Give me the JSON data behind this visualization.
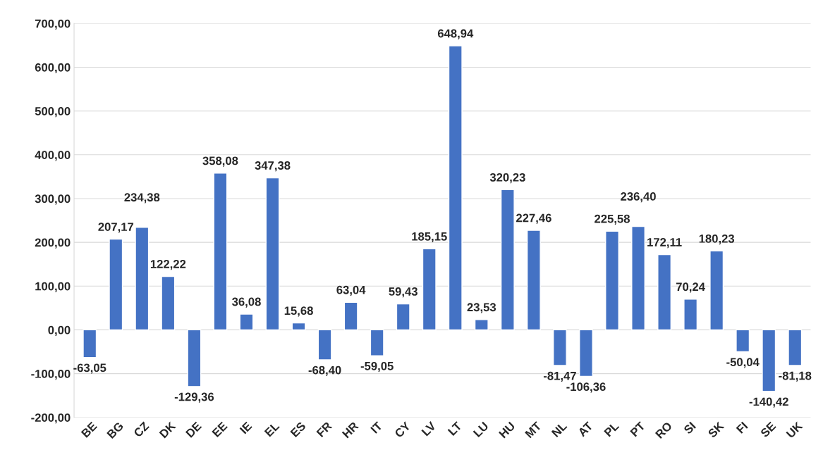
{
  "chart_data": {
    "type": "bar",
    "categories": [
      "BE",
      "BG",
      "CZ",
      "DK",
      "DE",
      "EE",
      "IE",
      "EL",
      "ES",
      "FR",
      "HR",
      "IT",
      "CY",
      "LV",
      "LT",
      "LU",
      "HU",
      "MT",
      "NL",
      "AT",
      "PL",
      "PT",
      "RO",
      "SI",
      "SK",
      "FI",
      "SE",
      "UK"
    ],
    "values": [
      -63.05,
      207.17,
      234.38,
      122.22,
      -129.36,
      358.08,
      36.08,
      347.38,
      15.68,
      -68.4,
      63.04,
      -59.05,
      59.43,
      185.15,
      648.94,
      23.53,
      320.23,
      227.46,
      -81.47,
      -106.36,
      225.58,
      236.4,
      172.11,
      70.24,
      180.23,
      -50.04,
      -140.42,
      -81.18
    ],
    "value_labels": [
      "-63,05",
      "207,17",
      "234,38",
      "122,22",
      "-129,36",
      "358,08",
      "36,08",
      "347,38",
      "15,68",
      "-68,40",
      "63,04",
      "-59,05",
      "59,43",
      "185,15",
      "648,94",
      "23,53",
      "320,23",
      "227,46",
      "-81,47",
      "-106,36",
      "225,58",
      "236,40",
      "172,11",
      "70,24",
      "180,23",
      "-50,04",
      "-140,42",
      "-81,18"
    ],
    "color": "#4472c4",
    "ylim": [
      -200,
      700
    ],
    "yticks": [
      {
        "value": -200,
        "label": "-200,00"
      },
      {
        "value": -100,
        "label": "-100,00"
      },
      {
        "value": 0,
        "label": "0,00"
      },
      {
        "value": 100,
        "label": "100,00"
      },
      {
        "value": 200,
        "label": "200,00"
      },
      {
        "value": 300,
        "label": "300,00"
      },
      {
        "value": 400,
        "label": "400,00"
      },
      {
        "value": 500,
        "label": "500,00"
      },
      {
        "value": 600,
        "label": "600,00"
      },
      {
        "value": 700,
        "label": "700,00"
      }
    ],
    "grid": "y"
  }
}
